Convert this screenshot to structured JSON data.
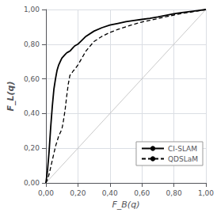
{
  "chart_data": {
    "type": "line",
    "xlabel": "F_B(q)",
    "ylabel": "F_L(q)",
    "xlim": [
      0.0,
      1.0
    ],
    "ylim": [
      0.0,
      1.0
    ],
    "xticks": [
      {
        "value": 0.0,
        "label": "0,00"
      },
      {
        "value": 0.2,
        "label": "0,20"
      },
      {
        "value": 0.4,
        "label": "0,40"
      },
      {
        "value": 0.6,
        "label": "0,60"
      },
      {
        "value": 0.8,
        "label": "0,80"
      },
      {
        "value": 1.0,
        "label": "1,00"
      }
    ],
    "yticks": [
      {
        "value": 0.0,
        "label": "0,00"
      },
      {
        "value": 0.2,
        "label": "0,20"
      },
      {
        "value": 0.4,
        "label": "0,40"
      },
      {
        "value": 0.6,
        "label": "0,60"
      },
      {
        "value": 0.8,
        "label": "0,80"
      },
      {
        "value": 1.0,
        "label": "1,00"
      }
    ],
    "grid": true,
    "legend": "lower right",
    "series": [
      {
        "color": "#bbbbbb",
        "line_style": "solid",
        "x": [
          0,
          1
        ],
        "values": [
          0,
          1
        ]
      },
      {
        "name": "CI-SLAM",
        "color": "#000000",
        "line_style": "solid",
        "x": [
          0.0,
          0.01,
          0.02,
          0.03,
          0.04,
          0.05,
          0.06,
          0.07,
          0.08,
          0.09,
          0.1,
          0.11,
          0.12,
          0.13,
          0.14,
          0.15,
          0.16,
          0.17,
          0.18,
          0.2,
          0.25,
          0.3,
          0.35,
          0.4,
          0.45,
          0.5,
          0.55,
          0.6,
          0.65,
          0.7,
          0.75,
          0.8,
          0.85,
          0.9,
          0.95,
          1.0
        ],
        "values": [
          0.0,
          0.07,
          0.18,
          0.32,
          0.44,
          0.54,
          0.6,
          0.65,
          0.68,
          0.7,
          0.72,
          0.73,
          0.74,
          0.75,
          0.755,
          0.76,
          0.77,
          0.78,
          0.79,
          0.8,
          0.845,
          0.875,
          0.895,
          0.91,
          0.92,
          0.93,
          0.937,
          0.943,
          0.949,
          0.957,
          0.966,
          0.975,
          0.982,
          0.988,
          0.994,
          1.0
        ]
      },
      {
        "name": "QDSLaM",
        "color": "#000000",
        "line_style": "dashed",
        "x": [
          0.0,
          0.01,
          0.02,
          0.03,
          0.04,
          0.05,
          0.06,
          0.07,
          0.08,
          0.09,
          0.1,
          0.11,
          0.12,
          0.13,
          0.14,
          0.15,
          0.16,
          0.17,
          0.18,
          0.2,
          0.25,
          0.3,
          0.35,
          0.4,
          0.45,
          0.5,
          0.55,
          0.6,
          0.65,
          0.7,
          0.75,
          0.8,
          0.85,
          0.9,
          0.95,
          1.0
        ],
        "values": [
          0.0,
          0.02,
          0.05,
          0.09,
          0.13,
          0.17,
          0.21,
          0.24,
          0.27,
          0.29,
          0.31,
          0.36,
          0.42,
          0.5,
          0.57,
          0.62,
          0.63,
          0.645,
          0.655,
          0.68,
          0.76,
          0.815,
          0.845,
          0.868,
          0.885,
          0.9,
          0.915,
          0.928,
          0.938,
          0.948,
          0.958,
          0.968,
          0.977,
          0.984,
          0.992,
          1.0
        ]
      }
    ]
  }
}
